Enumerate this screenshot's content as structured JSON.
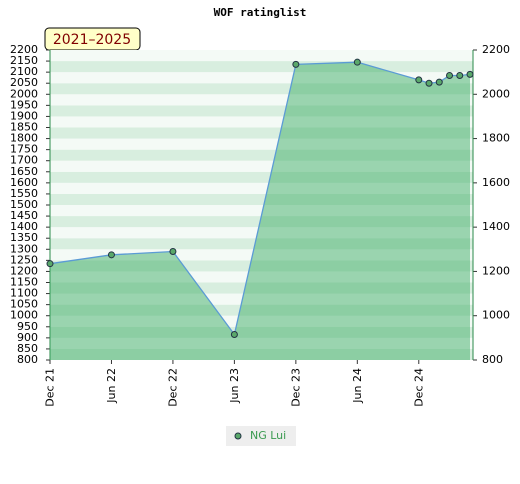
{
  "chart_data": {
    "type": "line",
    "title": "WOF ratinglist",
    "badge": "2021–2025",
    "x": [
      "2021-12",
      "2022-06",
      "2022-12",
      "2023-06",
      "2023-12",
      "2024-06",
      "2024-12",
      "2025-01",
      "2025-02",
      "2025-03",
      "2025-04",
      "2025-05"
    ],
    "series": [
      {
        "name": "NG Lui",
        "color": "#5b9bd5",
        "marker_color": "#5aa86a",
        "values": [
          1235,
          1275,
          1290,
          915,
          2135,
          2145,
          2065,
          2050,
          2055,
          2085,
          2085,
          2090
        ]
      }
    ],
    "xlim": [
      "2021-12",
      "2025-05"
    ],
    "xticks": [
      {
        "value": "2021-12",
        "label": "Dec 21"
      },
      {
        "value": "2022-06",
        "label": "Jun 22"
      },
      {
        "value": "2022-12",
        "label": "Dec 22"
      },
      {
        "value": "2023-06",
        "label": "Jun 23"
      },
      {
        "value": "2023-12",
        "label": "Dec 23"
      },
      {
        "value": "2024-06",
        "label": "Jun 24"
      },
      {
        "value": "2024-12",
        "label": "Dec 24"
      }
    ],
    "ylim": [
      800,
      2200
    ],
    "yticks": [
      800,
      850,
      900,
      950,
      1000,
      1050,
      1100,
      1150,
      1200,
      1250,
      1300,
      1350,
      1400,
      1450,
      1500,
      1550,
      1600,
      1650,
      1700,
      1750,
      1800,
      1850,
      1900,
      1950,
      2000,
      2050,
      2100,
      2150,
      2200
    ],
    "y2lim": [
      800,
      2200
    ],
    "y2ticks": [
      800,
      1000,
      1200,
      1400,
      1600,
      1800,
      2000,
      2200
    ],
    "area_color": "#3fae68",
    "legend": "bottom"
  }
}
